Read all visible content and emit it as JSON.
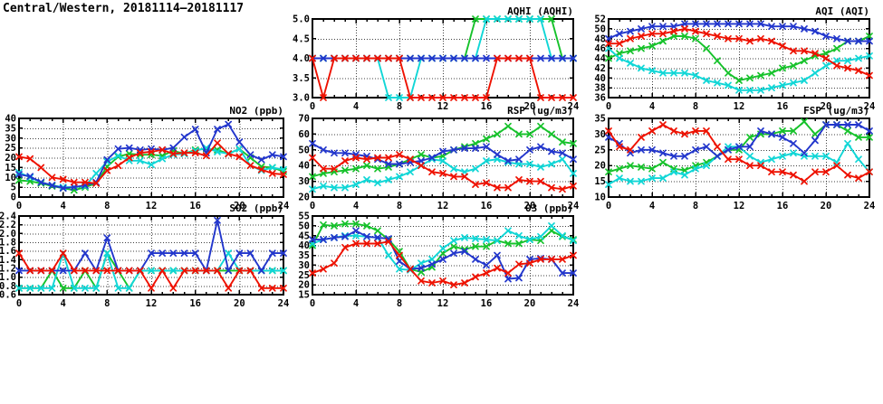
{
  "page_title": "Central/Western, 20181114–20181117",
  "colors": {
    "red": "#ee1100",
    "blue": "#2236cc",
    "green": "#16c22b",
    "cyan": "#10d6d6",
    "axis": "#000000",
    "grid": "#404040"
  },
  "chart_data": [
    {
      "id": "aqhi",
      "type": "line",
      "title": "AQHI (AQHI)",
      "xlim": [
        0,
        24
      ],
      "xticks": [
        0,
        4,
        8,
        12,
        16,
        20,
        24
      ],
      "x_step_hours": 1,
      "ylim": [
        3,
        5
      ],
      "yticks": [
        3.0,
        3.5,
        4.0,
        4.5,
        5.0
      ],
      "ytick_labels": [
        "3.0",
        "3.5",
        "4.0",
        "4.5",
        "5.0"
      ],
      "grid": true,
      "legend": "none",
      "series": [
        {
          "name": "green",
          "color": "green",
          "values": [
            4,
            4,
            4,
            4,
            4,
            4,
            4,
            4,
            4,
            4,
            4,
            4,
            4,
            4,
            4,
            5,
            5,
            5,
            5,
            5,
            5,
            5,
            5,
            4,
            4
          ]
        },
        {
          "name": "cyan",
          "color": "cyan",
          "values": [
            4,
            4,
            4,
            4,
            4,
            4,
            4,
            3,
            3,
            3,
            4,
            4,
            4,
            4,
            4,
            4,
            5,
            5,
            5,
            5,
            5,
            5,
            4,
            4,
            4
          ]
        },
        {
          "name": "blue",
          "color": "blue",
          "values": [
            4,
            4,
            4,
            4,
            4,
            4,
            4,
            4,
            4,
            4,
            4,
            4,
            4,
            4,
            4,
            4,
            4,
            4,
            4,
            4,
            4,
            4,
            4,
            4,
            4
          ]
        },
        {
          "name": "red",
          "color": "red",
          "values": [
            4,
            3,
            4,
            4,
            4,
            4,
            4,
            4,
            4,
            3,
            3,
            3,
            3,
            3,
            3,
            3,
            3,
            4,
            4,
            4,
            4,
            3,
            3,
            3,
            3
          ]
        }
      ]
    },
    {
      "id": "aqi",
      "type": "line",
      "title": "AQI (AQI)",
      "xlim": [
        0,
        24
      ],
      "xticks": [
        0,
        4,
        8,
        12,
        16,
        20,
        24
      ],
      "x_step_hours": 1,
      "ylim": [
        36,
        52
      ],
      "yticks": [
        36,
        38,
        40,
        42,
        44,
        46,
        48,
        50,
        52
      ],
      "ytick_labels": [
        "36",
        "38",
        "40",
        "42",
        "44",
        "46",
        "48",
        "50",
        "52"
      ],
      "grid": true,
      "legend": "none",
      "series": [
        {
          "name": "green",
          "color": "green",
          "values": [
            44,
            45,
            45.5,
            46,
            46.5,
            47.5,
            48.5,
            48.5,
            48,
            46,
            43.5,
            41,
            39.5,
            40,
            40.5,
            41,
            42,
            42.5,
            43.5,
            44.5,
            45,
            46,
            47.5,
            47.5,
            48.5
          ]
        },
        {
          "name": "cyan",
          "color": "cyan",
          "values": [
            46,
            44,
            43,
            42,
            41.5,
            41,
            41,
            41,
            40.5,
            39.5,
            39,
            38.5,
            37.5,
            37.5,
            37.5,
            38,
            38.5,
            39,
            39.5,
            41,
            42.5,
            43.5,
            43.5,
            44,
            44.5
          ]
        },
        {
          "name": "blue",
          "color": "blue",
          "values": [
            48,
            49,
            49.5,
            50,
            50.5,
            50.5,
            50.5,
            51,
            51,
            51,
            51,
            51,
            51,
            51,
            51,
            50.5,
            50.5,
            50.5,
            50,
            49.5,
            48.5,
            48,
            47.5,
            47.5,
            47.5
          ]
        },
        {
          "name": "red",
          "color": "red",
          "values": [
            47,
            47,
            48,
            48.5,
            49,
            49,
            49.5,
            50,
            49.5,
            49,
            48.5,
            48,
            48,
            47.5,
            48,
            47.5,
            46.5,
            45.5,
            45.5,
            45,
            44,
            42.5,
            42,
            41.5,
            40.5
          ]
        }
      ]
    },
    {
      "id": "no2",
      "type": "line",
      "title": "NO2 (ppb)",
      "xlim": [
        0,
        24
      ],
      "xticks": [
        0,
        4,
        8,
        12,
        16,
        20,
        24
      ],
      "x_step_hours": 1,
      "ylim": [
        0,
        40
      ],
      "yticks": [
        0,
        5,
        10,
        15,
        20,
        25,
        30,
        35,
        40
      ],
      "ytick_labels": [
        "0",
        "5",
        "10",
        "15",
        "20",
        "25",
        "30",
        "35",
        "40"
      ],
      "grid": true,
      "legend": "none",
      "series": [
        {
          "name": "green",
          "color": "green",
          "values": [
            8.5,
            8,
            7,
            5.5,
            4.5,
            3.5,
            5,
            7,
            15.5,
            20.5,
            22,
            21.5,
            21.5,
            21,
            23.5,
            22,
            24,
            24.5,
            24,
            22,
            24.5,
            20,
            15.5,
            15,
            13
          ]
        },
        {
          "name": "cyan",
          "color": "cyan",
          "values": [
            12.5,
            10,
            7.5,
            6,
            5,
            5,
            5.5,
            12,
            18,
            21,
            18.5,
            18.5,
            16.5,
            19.5,
            21.5,
            22,
            23.5,
            25,
            23,
            22,
            24.5,
            16,
            13.5,
            15,
            14
          ]
        },
        {
          "name": "blue",
          "color": "blue",
          "values": [
            11.5,
            10.5,
            7.5,
            6,
            4.5,
            5,
            6,
            7.5,
            19,
            24.5,
            25,
            24,
            24.5,
            24,
            25,
            30.5,
            34.5,
            22.5,
            34.5,
            37,
            28,
            21.5,
            19,
            21.5,
            20.5
          ]
        },
        {
          "name": "red",
          "color": "red",
          "values": [
            20.5,
            19.5,
            15,
            10,
            9,
            7.5,
            7.5,
            7,
            13.5,
            16,
            20,
            22.5,
            23,
            24,
            22,
            22.5,
            22.5,
            21,
            27.5,
            22,
            20.5,
            16,
            14,
            12,
            11.5
          ]
        }
      ]
    },
    {
      "id": "rsp",
      "type": "line",
      "title": "RSP (ug/m3)",
      "xlim": [
        0,
        24
      ],
      "xticks": [
        0,
        4,
        8,
        12,
        16,
        20,
        24
      ],
      "x_step_hours": 1,
      "ylim": [
        20,
        70
      ],
      "yticks": [
        20,
        30,
        40,
        50,
        60,
        70
      ],
      "ytick_labels": [
        "20",
        "30",
        "40",
        "50",
        "60",
        "70"
      ],
      "grid": true,
      "legend": "none",
      "series": [
        {
          "name": "green",
          "color": "green",
          "values": [
            33,
            35,
            36,
            37,
            38,
            40,
            38,
            39,
            41,
            44,
            47,
            45,
            46,
            50,
            52,
            54,
            57,
            60,
            65,
            60,
            60,
            65,
            60,
            55,
            54
          ]
        },
        {
          "name": "cyan",
          "color": "cyan",
          "values": [
            25,
            27,
            26,
            26,
            28,
            31,
            29,
            31,
            33,
            36,
            40,
            44,
            43,
            38,
            36,
            38,
            43,
            44,
            42,
            41,
            41,
            39,
            41,
            44,
            35
          ]
        },
        {
          "name": "blue",
          "color": "blue",
          "values": [
            54,
            50,
            48,
            48,
            47,
            46,
            44,
            41,
            41,
            42,
            43,
            45,
            49,
            50,
            51,
            51,
            52,
            47,
            43,
            44,
            50,
            52,
            49,
            48,
            44
          ]
        },
        {
          "name": "red",
          "color": "red",
          "values": [
            45,
            38,
            38,
            43,
            45,
            44,
            45,
            45,
            47,
            44,
            40,
            36,
            35,
            33,
            33,
            28,
            29,
            26,
            26,
            31,
            30,
            30,
            26,
            25,
            27
          ]
        }
      ]
    },
    {
      "id": "fsp",
      "type": "line",
      "title": "FSP (ug/m3)",
      "xlim": [
        0,
        24
      ],
      "xticks": [
        0,
        4,
        8,
        12,
        16,
        20,
        24
      ],
      "x_step_hours": 1,
      "ylim": [
        10,
        35
      ],
      "yticks": [
        10,
        15,
        20,
        25,
        30,
        35
      ],
      "ytick_labels": [
        "10",
        "15",
        "20",
        "25",
        "30",
        "35"
      ],
      "grid": true,
      "legend": "none",
      "series": [
        {
          "name": "green",
          "color": "green",
          "values": [
            18,
            19,
            20,
            19.5,
            19,
            21,
            19,
            18.5,
            20,
            21,
            23,
            25,
            25,
            29,
            30,
            30,
            31,
            31,
            34,
            30,
            33,
            33,
            31,
            29,
            29
          ]
        },
        {
          "name": "cyan",
          "color": "cyan",
          "values": [
            14,
            16,
            15,
            15,
            16,
            16,
            18,
            17,
            19,
            20,
            23,
            26,
            26,
            23,
            21,
            22,
            23,
            24,
            23,
            23,
            23,
            21,
            27,
            22,
            18
          ]
        },
        {
          "name": "blue",
          "color": "blue",
          "values": [
            29,
            27,
            24,
            25,
            25,
            24,
            23,
            23,
            25,
            26,
            23,
            25,
            26,
            26,
            31,
            30,
            29,
            27,
            24,
            28,
            33,
            33,
            33,
            33,
            31
          ]
        },
        {
          "name": "red",
          "color": "red",
          "values": [
            31,
            26,
            25,
            29,
            31,
            33,
            31,
            30,
            31,
            31,
            26,
            22,
            22,
            20,
            20,
            18,
            18,
            17,
            15,
            18,
            18,
            20,
            17,
            16,
            18
          ]
        }
      ]
    },
    {
      "id": "so2",
      "type": "line",
      "title": "SO2 (ppb)",
      "xlim": [
        0,
        24
      ],
      "xticks": [
        0,
        4,
        8,
        12,
        16,
        20,
        24
      ],
      "x_step_hours": 1,
      "ylim": [
        0.6,
        2.4
      ],
      "yticks": [
        0.6,
        0.8,
        1.0,
        1.2,
        1.4,
        1.6,
        1.8,
        2.0,
        2.2,
        2.4
      ],
      "ytick_labels": [
        "0.6",
        "0.8",
        "1.0",
        "1.2",
        "1.4",
        "1.6",
        "1.8",
        "2.0",
        "2.2",
        "2.4"
      ],
      "grid": true,
      "legend": "none",
      "series": [
        {
          "name": "green",
          "color": "green",
          "values": [
            0.75,
            0.75,
            0.75,
            1.15,
            0.75,
            0.75,
            1.15,
            0.75,
            1.55,
            1.15,
            0.75,
            1.15,
            1.15,
            1.15,
            1.15,
            1.15,
            1.15,
            1.15,
            1.15,
            1.15,
            1.15,
            1.15,
            1.15,
            1.15,
            1.15
          ]
        },
        {
          "name": "cyan",
          "color": "cyan",
          "values": [
            0.75,
            0.75,
            0.75,
            0.75,
            1.55,
            0.75,
            0.75,
            0.75,
            1.55,
            0.75,
            0.75,
            1.15,
            1.15,
            1.15,
            1.15,
            1.15,
            1.15,
            1.15,
            1.15,
            1.55,
            1.15,
            1.15,
            1.15,
            1.15,
            1.15
          ]
        },
        {
          "name": "blue",
          "color": "blue",
          "values": [
            1.15,
            1.15,
            1.15,
            1.15,
            1.15,
            1.15,
            1.55,
            1.15,
            1.9,
            1.15,
            1.15,
            1.15,
            1.55,
            1.55,
            1.55,
            1.55,
            1.55,
            1.15,
            2.3,
            1.15,
            1.55,
            1.55,
            1.15,
            1.55,
            1.55
          ]
        },
        {
          "name": "red",
          "color": "red",
          "values": [
            1.55,
            1.15,
            1.15,
            1.15,
            1.55,
            1.15,
            1.15,
            1.15,
            1.15,
            1.15,
            1.15,
            1.15,
            0.75,
            1.15,
            0.75,
            1.15,
            1.15,
            1.15,
            1.15,
            0.75,
            1.15,
            1.15,
            0.75,
            0.75,
            0.75
          ]
        }
      ]
    },
    {
      "id": "o3",
      "type": "line",
      "title": "O3 (ppb)",
      "xlim": [
        0,
        24
      ],
      "xticks": [
        0,
        4,
        8,
        12,
        16,
        20,
        24
      ],
      "x_step_hours": 1,
      "ylim": [
        15,
        55
      ],
      "yticks": [
        15,
        20,
        25,
        30,
        35,
        40,
        45,
        50,
        55
      ],
      "ytick_labels": [
        "15",
        "20",
        "25",
        "30",
        "35",
        "40",
        "45",
        "50",
        "55"
      ],
      "grid": true,
      "legend": "none",
      "series": [
        {
          "name": "green",
          "color": "green",
          "values": [
            40,
            50.5,
            50,
            51,
            51,
            50,
            47.5,
            43,
            37,
            28,
            26.5,
            29,
            36,
            39.5,
            38,
            39.5,
            39.5,
            42.5,
            41,
            41,
            43,
            42.5,
            47.5,
            44.5,
            43
          ]
        },
        {
          "name": "cyan",
          "color": "cyan",
          "values": [
            41,
            43,
            44,
            45,
            45,
            44.5,
            44,
            35,
            28,
            27.5,
            31,
            33,
            38.5,
            42.5,
            44,
            43.5,
            43,
            42.5,
            47.5,
            45,
            43,
            44.5,
            50,
            45,
            42.5
          ]
        },
        {
          "name": "blue",
          "color": "blue",
          "values": [
            43,
            43,
            44,
            44.5,
            47.5,
            44.5,
            44,
            43.5,
            32,
            28,
            28.5,
            30.5,
            33,
            36,
            37,
            33,
            30,
            35,
            23,
            23.5,
            33,
            33.5,
            33,
            26,
            26
          ]
        },
        {
          "name": "red",
          "color": "red",
          "values": [
            26,
            28,
            31,
            39,
            41,
            41,
            41,
            42,
            35,
            28,
            22,
            21,
            22,
            20,
            21,
            24,
            26,
            28.5,
            26,
            30.5,
            31,
            33,
            33,
            33,
            35
          ]
        }
      ]
    }
  ]
}
